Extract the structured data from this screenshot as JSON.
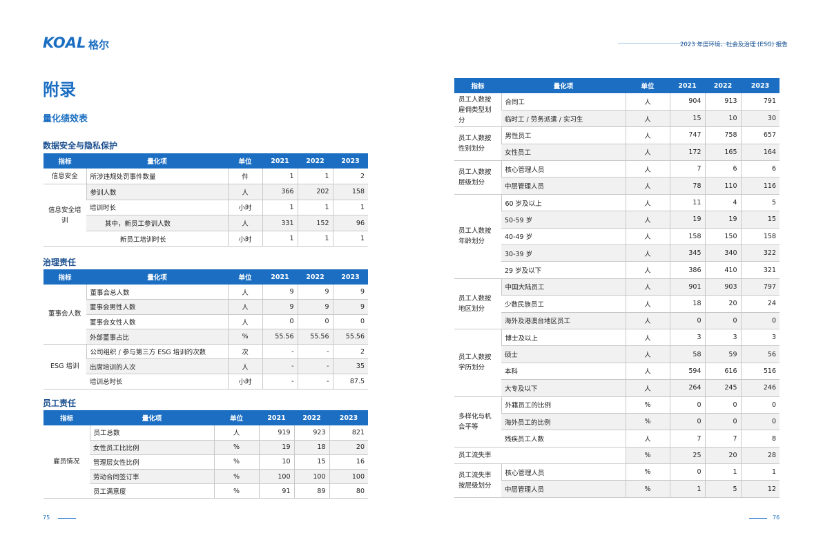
{
  "header": {
    "logo": "KOAL",
    "logo_cn": "格尔",
    "report_title": "2023 年度环境、社会及治理 (ESG) 报告"
  },
  "left_page": {
    "title": "附录",
    "subtitle": "量化绩效表",
    "page_number": "75",
    "sections": [
      {
        "title": "数据安全与隐私保护",
        "table": {
          "columns": [
            "指标",
            "量化项",
            "单位",
            "2021",
            "2022",
            "2023"
          ],
          "groups": [
            {
              "label": "信息安全",
              "rows": [
                {
                  "item": "所涉违规处罚事件数量",
                  "unit": "件",
                  "values": [
                    1,
                    1,
                    2
                  ]
                }
              ]
            },
            {
              "label": "信息安全培训",
              "rows": [
                {
                  "item": "参训人数",
                  "unit": "人",
                  "values": [
                    366,
                    202,
                    158
                  ]
                },
                {
                  "item": "培训时长",
                  "unit": "小时",
                  "values": [
                    1,
                    1,
                    1
                  ]
                },
                {
                  "item": "其中，新员工参训人数",
                  "unit": "人",
                  "values": [
                    331,
                    152,
                    96
                  ],
                  "indent": 1
                },
                {
                  "item": "新员工培训时长",
                  "unit": "小时",
                  "values": [
                    1,
                    1,
                    1
                  ],
                  "indent": 2
                }
              ]
            }
          ]
        }
      },
      {
        "title": "治理责任",
        "table": {
          "columns": [
            "指标",
            "量化项",
            "单位",
            "2021",
            "2022",
            "2023"
          ],
          "groups": [
            {
              "label": "董事会人数",
              "rows": [
                {
                  "item": "董事会总人数",
                  "unit": "人",
                  "values": [
                    9,
                    9,
                    9
                  ]
                },
                {
                  "item": "董事会男性人数",
                  "unit": "人",
                  "values": [
                    9,
                    9,
                    9
                  ]
                },
                {
                  "item": "董事会女性人数",
                  "unit": "人",
                  "values": [
                    0,
                    0,
                    0
                  ]
                },
                {
                  "item": "外部董事占比",
                  "unit": "%",
                  "values": [
                    55.56,
                    55.56,
                    55.56
                  ]
                }
              ]
            },
            {
              "label": "ESG 培训",
              "rows": [
                {
                  "item": "公司组织 / 参与第三方 ESG 培训的次数",
                  "unit": "次",
                  "values": [
                    "-",
                    "-",
                    2
                  ]
                },
                {
                  "item": "出席培训的人次",
                  "unit": "人",
                  "values": [
                    "-",
                    "-",
                    35
                  ]
                },
                {
                  "item": "培训总时长",
                  "unit": "小时",
                  "values": [
                    "-",
                    "-",
                    87.5
                  ]
                }
              ]
            }
          ]
        }
      },
      {
        "title": "员工责任",
        "table": {
          "columns": [
            "指标",
            "量化项",
            "单位",
            "2021",
            "2022",
            "2023"
          ],
          "groups": [
            {
              "label": "雇员情况",
              "rows": [
                {
                  "item": "员工总数",
                  "unit": "人",
                  "values": [
                    919,
                    923,
                    821
                  ]
                },
                {
                  "item": "女性员工比比例",
                  "unit": "%",
                  "values": [
                    19,
                    18,
                    20
                  ]
                },
                {
                  "item": "管理层女性比例",
                  "unit": "%",
                  "values": [
                    10,
                    15,
                    16
                  ]
                },
                {
                  "item": "劳动合同签订率",
                  "unit": "%",
                  "values": [
                    100,
                    100,
                    100
                  ]
                },
                {
                  "item": "员工满意度",
                  "unit": "%",
                  "values": [
                    91,
                    89,
                    80
                  ]
                }
              ]
            }
          ]
        }
      }
    ]
  },
  "right_page": {
    "page_number": "76",
    "table": {
      "columns": [
        "指标",
        "量化项",
        "单位",
        "2021",
        "2022",
        "2023"
      ],
      "groups": [
        {
          "label": "员工人数按雇佣类型划分",
          "rows": [
            {
              "item": "合同工",
              "unit": "人",
              "values": [
                904,
                913,
                791
              ]
            },
            {
              "item": "临时工 / 劳务派遣 / 实习生",
              "unit": "人",
              "values": [
                15,
                10,
                30
              ]
            }
          ]
        },
        {
          "label": "员工人数按性别划分",
          "rows": [
            {
              "item": "男性员工",
              "unit": "人",
              "values": [
                747,
                758,
                657
              ]
            },
            {
              "item": "女性员工",
              "unit": "人",
              "values": [
                172,
                165,
                164
              ]
            }
          ]
        },
        {
          "label": "员工人数按层级划分",
          "rows": [
            {
              "item": "核心管理人员",
              "unit": "人",
              "values": [
                7,
                6,
                6
              ]
            },
            {
              "item": "中层管理人员",
              "unit": "人",
              "values": [
                78,
                110,
                116
              ]
            }
          ]
        },
        {
          "label": "员工人数按年龄划分",
          "rows": [
            {
              "item": "60 岁及以上",
              "unit": "人",
              "values": [
                11,
                4,
                5
              ]
            },
            {
              "item": "50-59 岁",
              "unit": "人",
              "values": [
                19,
                19,
                15
              ]
            },
            {
              "item": "40-49 岁",
              "unit": "人",
              "values": [
                158,
                150,
                158
              ]
            },
            {
              "item": "30-39 岁",
              "unit": "人",
              "values": [
                345,
                340,
                322
              ]
            },
            {
              "item": "29 岁及以下",
              "unit": "人",
              "values": [
                386,
                410,
                321
              ]
            }
          ]
        },
        {
          "label": "员工人数按地区划分",
          "rows": [
            {
              "item": "中国大陆员工",
              "unit": "人",
              "values": [
                901,
                903,
                797
              ]
            },
            {
              "item": "少数民族员工",
              "unit": "人",
              "values": [
                18,
                20,
                24
              ]
            },
            {
              "item": "海外及港澳台地区员工",
              "unit": "人",
              "values": [
                0,
                0,
                0
              ]
            }
          ]
        },
        {
          "label": "员工人数按学历划分",
          "rows": [
            {
              "item": "博士及以上",
              "unit": "人",
              "values": [
                3,
                3,
                3
              ]
            },
            {
              "item": "硕士",
              "unit": "人",
              "values": [
                58,
                59,
                56
              ]
            },
            {
              "item": "本科",
              "unit": "人",
              "values": [
                594,
                616,
                516
              ]
            },
            {
              "item": "大专及以下",
              "unit": "人",
              "values": [
                264,
                245,
                246
              ]
            }
          ]
        },
        {
          "label": "多样化与机会平等",
          "rows": [
            {
              "item": "外籍员工的比例",
              "unit": "%",
              "values": [
                0,
                0,
                0
              ]
            },
            {
              "item": "海外员工的比例",
              "unit": "%",
              "values": [
                0,
                0,
                0
              ]
            },
            {
              "item": "残疾员工人数",
              "unit": "人",
              "values": [
                7,
                7,
                8
              ]
            }
          ]
        },
        {
          "label": "员工流失率",
          "rows": [
            {
              "unit": "%",
              "values": [
                25,
                20,
                28
              ]
            }
          ]
        },
        {
          "label": "员工流失率按层级划分",
          "rows": [
            {
              "item": "核心管理人员",
              "unit": "%",
              "values": [
                0,
                1,
                1
              ]
            },
            {
              "item": "中层管理人员",
              "unit": "%",
              "values": [
                1,
                5,
                12
              ]
            }
          ]
        }
      ]
    }
  }
}
